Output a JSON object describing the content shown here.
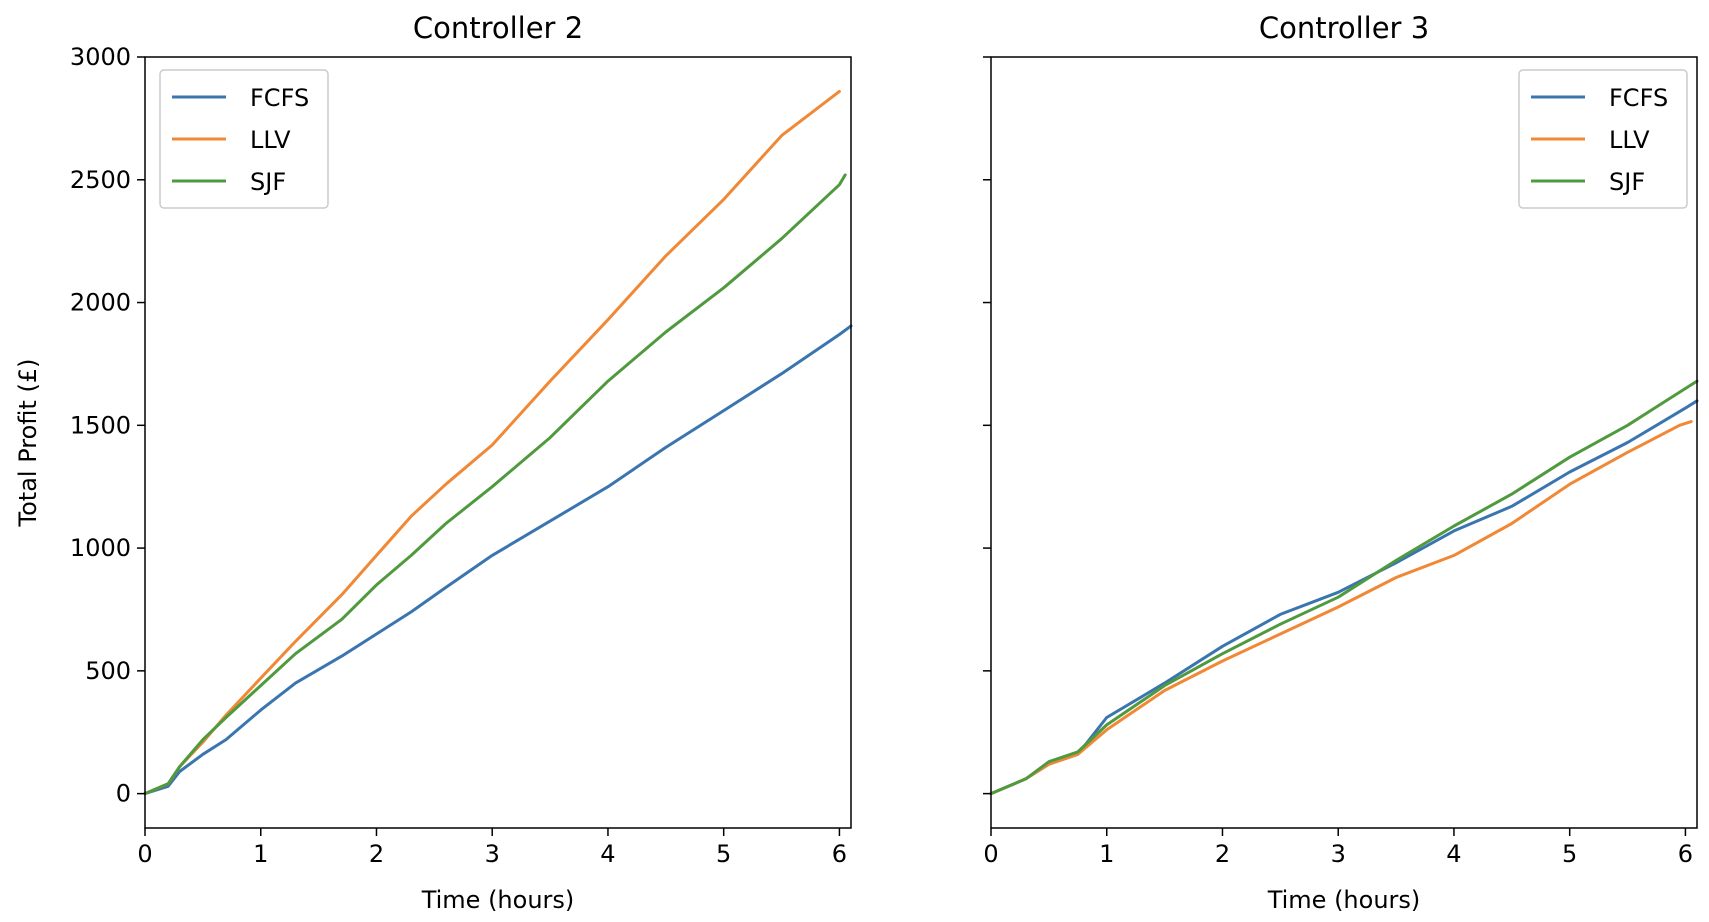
{
  "chart_data": [
    {
      "type": "line",
      "title": "Controller 2",
      "xlabel": "Time (hours)",
      "ylabel": "Total Profit (£)",
      "xlim": [
        0,
        6.1
      ],
      "ylim": [
        -140,
        3000
      ],
      "xticks": [
        "0",
        "1",
        "2",
        "3",
        "4",
        "5",
        "6"
      ],
      "yticks": [
        "0",
        "500",
        "1000",
        "1500",
        "2000",
        "2500",
        "3000"
      ],
      "grid": false,
      "legend": "top-left",
      "series": [
        {
          "name": "FCFS",
          "color": "#3a75b0",
          "x": [
            0,
            0.2,
            0.3,
            0.5,
            0.7,
            1.0,
            1.3,
            1.7,
            2.0,
            2.3,
            2.6,
            3.0,
            3.5,
            4.0,
            4.5,
            5.0,
            5.5,
            6.0,
            6.1
          ],
          "y": [
            0,
            30,
            90,
            160,
            220,
            340,
            450,
            560,
            650,
            740,
            840,
            970,
            1110,
            1250,
            1410,
            1560,
            1710,
            1870,
            1905
          ]
        },
        {
          "name": "LLV",
          "color": "#f08836",
          "x": [
            0,
            0.2,
            0.3,
            0.5,
            0.7,
            1.0,
            1.3,
            1.7,
            2.0,
            2.3,
            2.6,
            3.0,
            3.5,
            4.0,
            4.5,
            5.0,
            5.5,
            6.0
          ],
          "y": [
            0,
            40,
            110,
            210,
            320,
            470,
            620,
            810,
            970,
            1130,
            1260,
            1420,
            1680,
            1930,
            2190,
            2420,
            2680,
            2860
          ]
        },
        {
          "name": "SJF",
          "color": "#4f9a3e",
          "x": [
            0,
            0.2,
            0.3,
            0.5,
            0.7,
            1.0,
            1.3,
            1.7,
            2.0,
            2.3,
            2.6,
            3.0,
            3.5,
            4.0,
            4.5,
            5.0,
            5.5,
            6.0,
            6.05
          ],
          "y": [
            0,
            40,
            110,
            220,
            310,
            440,
            570,
            710,
            850,
            970,
            1100,
            1250,
            1450,
            1680,
            1880,
            2060,
            2260,
            2480,
            2520
          ]
        }
      ]
    },
    {
      "type": "line",
      "title": "Controller 3",
      "xlabel": "Time (hours)",
      "ylabel": "",
      "xlim": [
        0,
        6.1
      ],
      "ylim": [
        -140,
        3000
      ],
      "xticks": [
        "0",
        "1",
        "2",
        "3",
        "4",
        "5",
        "6"
      ],
      "yticks": [],
      "grid": false,
      "legend": "top-right",
      "series": [
        {
          "name": "FCFS",
          "color": "#3a75b0",
          "x": [
            0,
            0.3,
            0.5,
            0.75,
            1.0,
            1.5,
            2.0,
            2.5,
            3.0,
            3.5,
            4.0,
            4.5,
            5.0,
            5.5,
            6.0,
            6.1
          ],
          "y": [
            0,
            60,
            120,
            160,
            310,
            450,
            600,
            730,
            820,
            940,
            1070,
            1170,
            1310,
            1430,
            1570,
            1600
          ]
        },
        {
          "name": "LLV",
          "color": "#f08836",
          "x": [
            0,
            0.3,
            0.5,
            0.75,
            1.0,
            1.5,
            2.0,
            2.5,
            3.0,
            3.5,
            4.0,
            4.5,
            5.0,
            5.5,
            5.95,
            6.05
          ],
          "y": [
            0,
            60,
            120,
            160,
            260,
            420,
            540,
            650,
            760,
            880,
            970,
            1100,
            1260,
            1390,
            1500,
            1515
          ]
        },
        {
          "name": "SJF",
          "color": "#4f9a3e",
          "x": [
            0,
            0.3,
            0.5,
            0.75,
            1.0,
            1.5,
            2.0,
            2.5,
            3.0,
            3.5,
            4.0,
            4.5,
            5.0,
            5.5,
            6.0,
            6.1
          ],
          "y": [
            0,
            60,
            130,
            170,
            280,
            440,
            570,
            690,
            800,
            950,
            1090,
            1220,
            1370,
            1500,
            1650,
            1680
          ]
        }
      ]
    }
  ]
}
